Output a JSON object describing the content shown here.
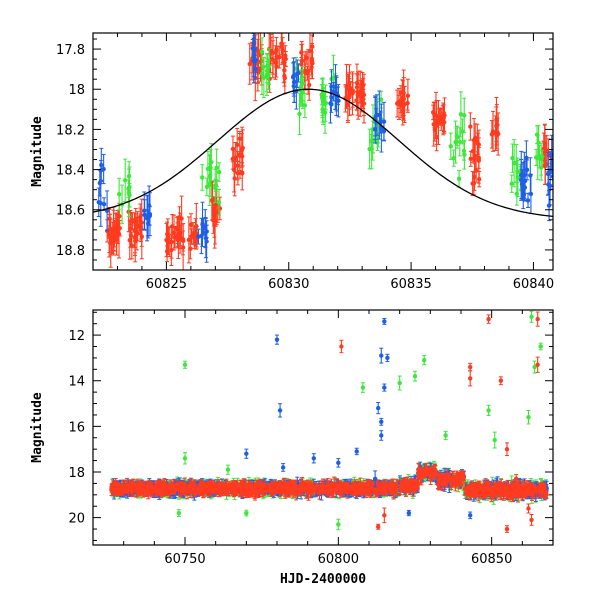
{
  "chart_data": [
    {
      "type": "scatter",
      "panel": "top",
      "ylabel": "Magnitude",
      "xlabel": "",
      "xlim": [
        60822.0,
        60840.8
      ],
      "ylim": [
        18.9,
        17.72
      ],
      "y_inverted": true,
      "xticks": [
        60825,
        60830,
        60835,
        60840
      ],
      "yticks": [
        17.8,
        18,
        18.2,
        18.4,
        18.6,
        18.8
      ],
      "colors": {
        "red": "#ff3b1f",
        "green": "#3ee83a",
        "blue": "#1f5fe8",
        "model": "#000000"
      },
      "model_curve": {
        "name": "",
        "center": 60830.8,
        "min_mag": 18.0,
        "amplitude": 0.65,
        "sigma": 3.7
      },
      "series": [
        {
          "color": "red",
          "clusters": [
            {
              "x0": 60822.5,
              "x1": 60823.2,
              "ymid": 18.7,
              "spread": 0.12,
              "n": 24
            },
            {
              "x0": 60823.4,
              "x1": 60824.0,
              "ymid": 18.7,
              "spread": 0.12,
              "n": 22
            },
            {
              "x0": 60825.0,
              "x1": 60825.7,
              "ymid": 18.72,
              "spread": 0.12,
              "n": 24
            },
            {
              "x0": 60825.9,
              "x1": 60826.3,
              "ymid": 18.75,
              "spread": 0.1,
              "n": 12
            },
            {
              "x0": 60826.8,
              "x1": 60827.2,
              "ymid": 18.6,
              "spread": 0.14,
              "n": 12
            },
            {
              "x0": 60827.7,
              "x1": 60828.2,
              "ymid": 18.35,
              "spread": 0.2,
              "n": 16
            },
            {
              "x0": 60828.4,
              "x1": 60828.9,
              "ymid": 17.85,
              "spread": 0.15,
              "n": 16
            },
            {
              "x0": 60829.2,
              "x1": 60829.9,
              "ymid": 17.85,
              "spread": 0.15,
              "n": 20
            },
            {
              "x0": 60830.5,
              "x1": 60831.0,
              "ymid": 17.9,
              "spread": 0.15,
              "n": 16
            },
            {
              "x0": 60832.3,
              "x1": 60833.1,
              "ymid": 18.02,
              "spread": 0.08,
              "n": 26
            },
            {
              "x0": 60834.4,
              "x1": 60834.9,
              "ymid": 18.05,
              "spread": 0.12,
              "n": 14
            },
            {
              "x0": 60835.9,
              "x1": 60836.4,
              "ymid": 18.15,
              "spread": 0.1,
              "n": 18
            },
            {
              "x0": 60837.4,
              "x1": 60837.8,
              "ymid": 18.35,
              "spread": 0.2,
              "n": 16
            },
            {
              "x0": 60838.3,
              "x1": 60838.6,
              "ymid": 18.2,
              "spread": 0.1,
              "n": 10
            },
            {
              "x0": 60840.4,
              "x1": 60840.8,
              "ymid": 18.35,
              "spread": 0.15,
              "n": 10
            }
          ]
        },
        {
          "color": "green",
          "clusters": [
            {
              "x0": 60823.0,
              "x1": 60823.5,
              "ymid": 18.5,
              "spread": 0.15,
              "n": 8
            },
            {
              "x0": 60826.4,
              "x1": 60827.3,
              "ymid": 18.45,
              "spread": 0.2,
              "n": 14
            },
            {
              "x0": 60828.8,
              "x1": 60829.2,
              "ymid": 17.9,
              "spread": 0.12,
              "n": 10
            },
            {
              "x0": 60830.3,
              "x1": 60830.7,
              "ymid": 18.0,
              "spread": 0.15,
              "n": 10
            },
            {
              "x0": 60831.3,
              "x1": 60831.9,
              "ymid": 18.05,
              "spread": 0.15,
              "n": 14
            },
            {
              "x0": 60833.3,
              "x1": 60833.8,
              "ymid": 18.2,
              "spread": 0.2,
              "n": 12
            },
            {
              "x0": 60836.6,
              "x1": 60837.2,
              "ymid": 18.3,
              "spread": 0.25,
              "n": 12
            },
            {
              "x0": 60839.1,
              "x1": 60839.5,
              "ymid": 18.4,
              "spread": 0.2,
              "n": 10
            },
            {
              "x0": 60840.1,
              "x1": 60840.4,
              "ymid": 18.3,
              "spread": 0.2,
              "n": 8
            }
          ]
        },
        {
          "color": "blue",
          "clusters": [
            {
              "x0": 60822.2,
              "x1": 60822.6,
              "ymid": 18.5,
              "spread": 0.2,
              "n": 8
            },
            {
              "x0": 60824.0,
              "x1": 60824.4,
              "ymid": 18.62,
              "spread": 0.12,
              "n": 8
            },
            {
              "x0": 60826.3,
              "x1": 60826.7,
              "ymid": 18.72,
              "spread": 0.1,
              "n": 10
            },
            {
              "x0": 60828.4,
              "x1": 60828.7,
              "ymid": 17.85,
              "spread": 0.1,
              "n": 8
            },
            {
              "x0": 60830.1,
              "x1": 60830.4,
              "ymid": 17.95,
              "spread": 0.1,
              "n": 8
            },
            {
              "x0": 60831.7,
              "x1": 60832.1,
              "ymid": 18.05,
              "spread": 0.1,
              "n": 10
            },
            {
              "x0": 60833.5,
              "x1": 60833.9,
              "ymid": 18.15,
              "spread": 0.1,
              "n": 10
            },
            {
              "x0": 60839.5,
              "x1": 60839.9,
              "ymid": 18.45,
              "spread": 0.15,
              "n": 14
            },
            {
              "x0": 60840.5,
              "x1": 60840.8,
              "ymid": 18.45,
              "spread": 0.15,
              "n": 8
            }
          ]
        }
      ]
    },
    {
      "type": "scatter",
      "panel": "bottom",
      "ylabel": "Magnitude",
      "xlabel": "HJD-2400000",
      "xlim": [
        60720,
        60870
      ],
      "ylim": [
        21.2,
        10.9
      ],
      "y_inverted": true,
      "xticks": [
        60750,
        60800,
        60850
      ],
      "yticks": [
        12,
        14,
        16,
        18,
        20
      ],
      "colors": {
        "red": "#ff3b1f",
        "green": "#3ee83a",
        "blue": "#1f5fe8"
      },
      "baseline": [
        {
          "x0": 60726,
          "x1": 60820,
          "mag": 18.72,
          "spread": 0.25
        },
        {
          "x0": 60820,
          "x1": 60826,
          "mag": 18.6,
          "spread": 0.3
        },
        {
          "x0": 60826,
          "x1": 60832,
          "mag": 18.05,
          "spread": 0.35
        },
        {
          "x0": 60832,
          "x1": 60841,
          "mag": 18.35,
          "spread": 0.35
        },
        {
          "x0": 60841,
          "x1": 60868,
          "mag": 18.8,
          "spread": 0.35
        }
      ],
      "outliers": {
        "red": [
          [
            60801,
            12.5
          ],
          [
            60843,
            13.4
          ],
          [
            60843,
            13.9
          ],
          [
            60849,
            11.3
          ],
          [
            60853,
            14.0
          ],
          [
            60855,
            17.0
          ],
          [
            60865,
            11.3
          ],
          [
            60865,
            13.3
          ],
          [
            60858,
            18.3
          ],
          [
            60862,
            19.6
          ],
          [
            60863,
            20.1
          ],
          [
            60855,
            20.5
          ],
          [
            60815,
            19.9
          ],
          [
            60813,
            20.4
          ]
        ],
        "green": [
          [
            60750,
            13.3
          ],
          [
            60750,
            17.4
          ],
          [
            60764,
            17.9
          ],
          [
            60808,
            14.3
          ],
          [
            60820,
            14.1
          ],
          [
            60825,
            13.8
          ],
          [
            60828,
            13.1
          ],
          [
            60835,
            16.4
          ],
          [
            60849,
            15.3
          ],
          [
            60851,
            16.6
          ],
          [
            60863,
            11.2
          ],
          [
            60864,
            13.4
          ],
          [
            60862,
            15.6
          ],
          [
            60866,
            12.5
          ],
          [
            60748,
            19.8
          ],
          [
            60770,
            19.8
          ],
          [
            60800,
            20.3
          ]
        ],
        "blue": [
          [
            60780,
            12.2
          ],
          [
            60781,
            15.3
          ],
          [
            60815,
            11.4
          ],
          [
            60814,
            12.9
          ],
          [
            60816,
            13.0
          ],
          [
            60815,
            14.3
          ],
          [
            60813,
            15.2
          ],
          [
            60814,
            15.8
          ],
          [
            60814,
            16.4
          ],
          [
            60770,
            17.2
          ],
          [
            60782,
            17.8
          ],
          [
            60792,
            17.4
          ],
          [
            60800,
            17.6
          ],
          [
            60806,
            17.1
          ],
          [
            60823,
            19.8
          ],
          [
            60843,
            19.9
          ],
          [
            60812,
            18.3
          ]
        ]
      }
    }
  ]
}
